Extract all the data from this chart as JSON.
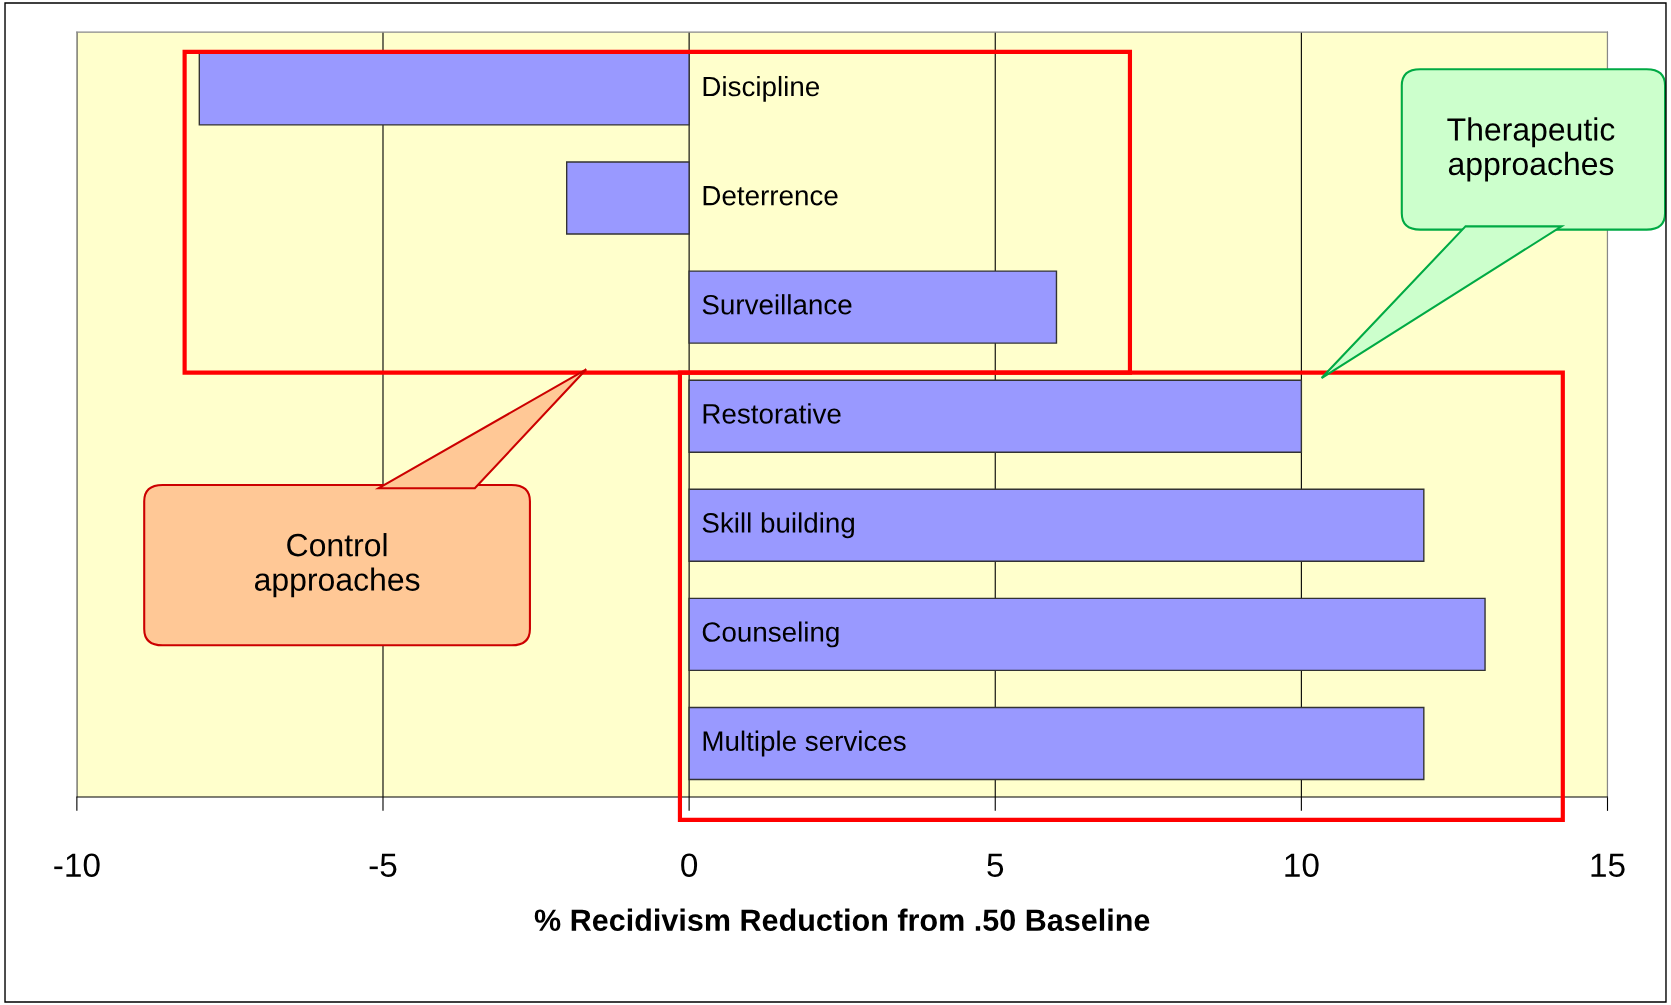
{
  "chart_data": {
    "type": "bar",
    "orientation": "horizontal",
    "categories": [
      "Discipline",
      "Deterrence",
      "Surveillance",
      "Restorative",
      "Skill building",
      "Counseling",
      "Multiple services"
    ],
    "values": [
      -8,
      -2,
      6,
      10,
      12,
      13,
      12
    ],
    "color": "#9999ff",
    "xlim": [
      -10,
      15
    ],
    "xticks": [
      -10,
      -5,
      0,
      5,
      10,
      15
    ],
    "xlabel": "% Recidivism Reduction from .50 Baseline",
    "grid": "x",
    "annotations": [
      "Control\napproaches",
      "Therapeutic\napproaches"
    ]
  }
}
